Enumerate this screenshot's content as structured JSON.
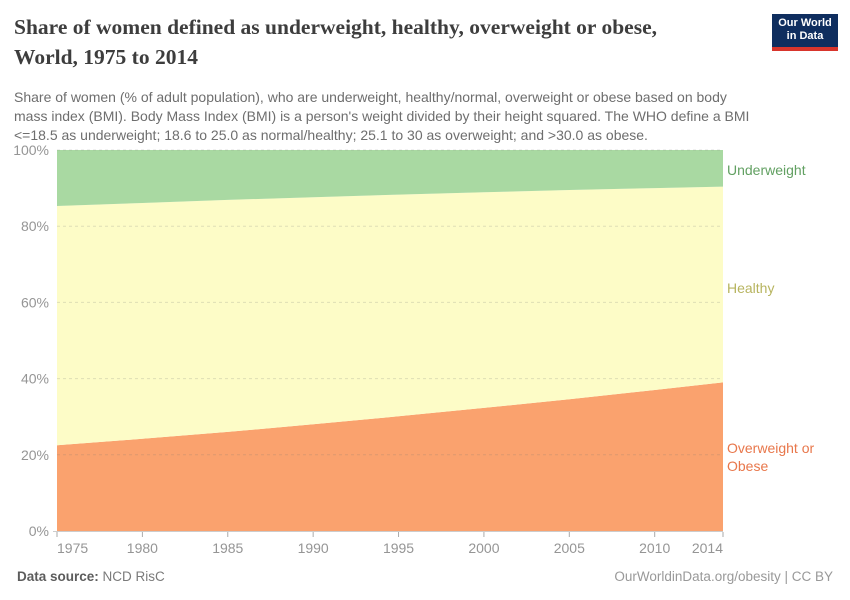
{
  "header": {
    "title_line1": "Share of women defined as underweight, healthy, overweight or obese,",
    "title_line2": "World, 1975 to 2014",
    "logo": {
      "line1": "Our World",
      "line2": "in Data",
      "bg_color": "#0f2e5f",
      "stripe_color": "#d8352c"
    }
  },
  "subtitle": "Share of women (% of adult population), who are underweight, healthy/normal, overweight or obese based on body mass index (BMI). Body Mass Index (BMI) is a person's weight divided by their height squared. The WHO define a BMI <=18.5 as underweight; 18.6 to 25.0 as normal/healthy; 25.1 to 30 as overweight; and >30.0 as obese.",
  "chart_data": {
    "type": "area",
    "stacked": true,
    "title": "Share of women defined as underweight, healthy, overweight or obese, World, 1975 to 2014",
    "units": "% of adult female population",
    "x": [
      1975,
      1980,
      1985,
      1990,
      1995,
      2000,
      2005,
      2010,
      2014
    ],
    "xlim": [
      1975,
      2014
    ],
    "ylim": [
      0,
      100
    ],
    "grid": "horizontal dashed",
    "legend_position": "right edge labels",
    "series": [
      {
        "name": "Overweight or Obese",
        "color": "#faa26e",
        "label_color": "#e8774b",
        "values": [
          22.5,
          24.2,
          26.0,
          28.0,
          30.1,
          32.3,
          34.6,
          37.0,
          39.0
        ]
      },
      {
        "name": "Healthy",
        "color": "#fdfcc7",
        "label_color": "#b7b45f",
        "values": [
          62.8,
          61.9,
          60.9,
          59.6,
          58.2,
          56.6,
          54.9,
          53.0,
          51.4
        ]
      },
      {
        "name": "Underweight",
        "color": "#a9d9a2",
        "label_color": "#62a062",
        "values": [
          14.7,
          13.9,
          13.1,
          12.4,
          11.7,
          11.1,
          10.5,
          10.0,
          9.6
        ]
      }
    ],
    "xticks": [
      {
        "v": 1975,
        "label": "1975"
      },
      {
        "v": 1980,
        "label": "1980"
      },
      {
        "v": 1985,
        "label": "1985"
      },
      {
        "v": 1990,
        "label": "1990"
      },
      {
        "v": 1995,
        "label": "1995"
      },
      {
        "v": 2000,
        "label": "2000"
      },
      {
        "v": 2005,
        "label": "2005"
      },
      {
        "v": 2010,
        "label": "2010"
      },
      {
        "v": 2014,
        "label": "2014"
      }
    ],
    "yticks": [
      {
        "v": 0,
        "label": "0%"
      },
      {
        "v": 20,
        "label": "20%"
      },
      {
        "v": 40,
        "label": "40%"
      },
      {
        "v": 60,
        "label": "60%"
      },
      {
        "v": 80,
        "label": "80%"
      },
      {
        "v": 100,
        "label": "100%"
      }
    ]
  },
  "footer": {
    "source_label": "Data source:",
    "source_value": "NCD RisC",
    "right": "OurWorldinData.org/obesity | CC BY"
  }
}
